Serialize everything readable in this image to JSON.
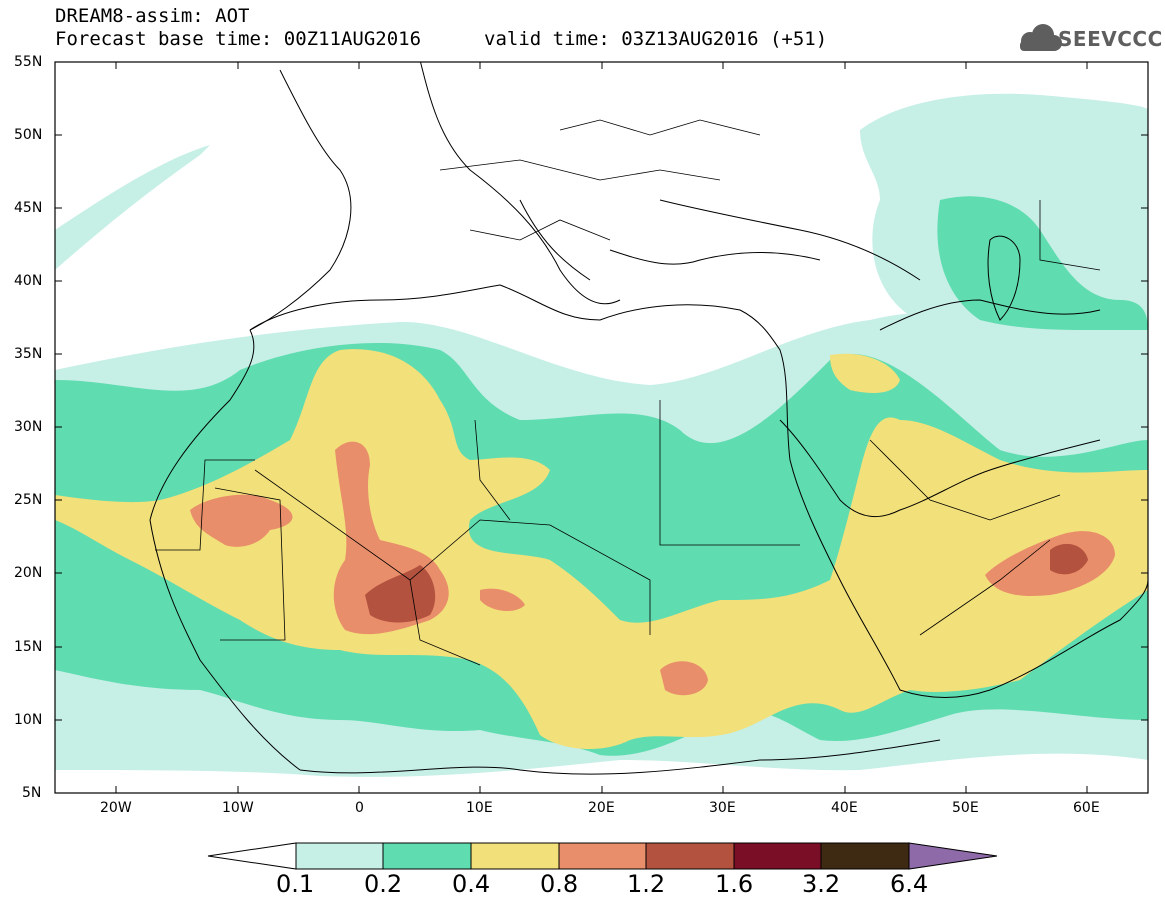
{
  "header": {
    "model_line": "DREAM8-assim: AOT",
    "base_time": "Forecast base time: 00Z11AUG2016",
    "valid_time": "valid time: 03Z13AUG2016 (+51)",
    "logo_text": "SEEVCCC"
  },
  "axes": {
    "lat_labels": [
      "55N",
      "50N",
      "45N",
      "40N",
      "35N",
      "30N",
      "25N",
      "20N",
      "15N",
      "10N",
      "5N"
    ],
    "lon_labels": [
      "20W",
      "10W",
      "0",
      "10E",
      "20E",
      "30E",
      "40E",
      "50E",
      "60E"
    ],
    "lon_range": [
      -25,
      65
    ],
    "lat_range": [
      5,
      55
    ]
  },
  "colorbar": {
    "labels": [
      "0.1",
      "0.2",
      "0.4",
      "0.8",
      "1.2",
      "1.6",
      "3.2",
      "6.4"
    ],
    "colors": [
      "#ffffff",
      "#c6efe6",
      "#5fdcb0",
      "#f2e07a",
      "#e98e6a",
      "#b3523f",
      "#7a0e27",
      "#3e2a13",
      "#8e6aa8"
    ]
  },
  "map_data": {
    "variable": "AOT",
    "fields": [
      {
        "level": "0.1-0.2",
        "color": "#c6efe6"
      },
      {
        "level": "0.2-0.4",
        "color": "#5fdcb0"
      },
      {
        "level": "0.4-0.8",
        "color": "#f2e07a"
      },
      {
        "level": "0.8-1.2",
        "color": "#e98e6a"
      },
      {
        "level": "1.2-1.6",
        "color": "#b3523f"
      }
    ]
  }
}
